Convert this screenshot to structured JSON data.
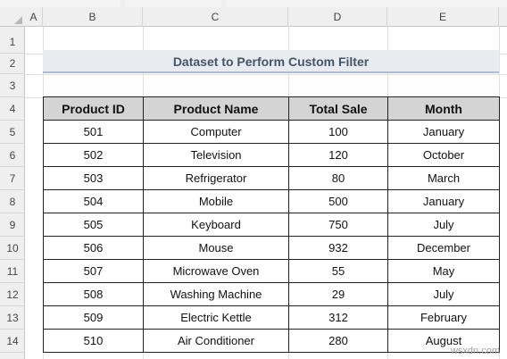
{
  "columns": [
    "A",
    "B",
    "C",
    "D",
    "E"
  ],
  "rows": [
    "1",
    "2",
    "3",
    "4",
    "5",
    "6",
    "7",
    "8",
    "9",
    "10",
    "11",
    "12",
    "13",
    "14"
  ],
  "title": "Dataset to Perform Custom Filter",
  "table": {
    "headers": [
      "Product ID",
      "Product Name",
      "Total Sale",
      "Month"
    ],
    "rows": [
      [
        "501",
        "Computer",
        "100",
        "January"
      ],
      [
        "502",
        "Television",
        "120",
        "October"
      ],
      [
        "503",
        "Refrigerator",
        "80",
        "March"
      ],
      [
        "504",
        "Mobile",
        "500",
        "January"
      ],
      [
        "505",
        "Keyboard",
        "750",
        "July"
      ],
      [
        "506",
        "Mouse",
        "932",
        "December"
      ],
      [
        "507",
        "Microwave Oven",
        "55",
        "May"
      ],
      [
        "508",
        "Washing Machine",
        "29",
        "July"
      ],
      [
        "509",
        "Electric Kettle",
        "312",
        "February"
      ],
      [
        "510",
        "Air Conditioner",
        "280",
        "August"
      ]
    ]
  },
  "watermark": "wsxdn.com"
}
